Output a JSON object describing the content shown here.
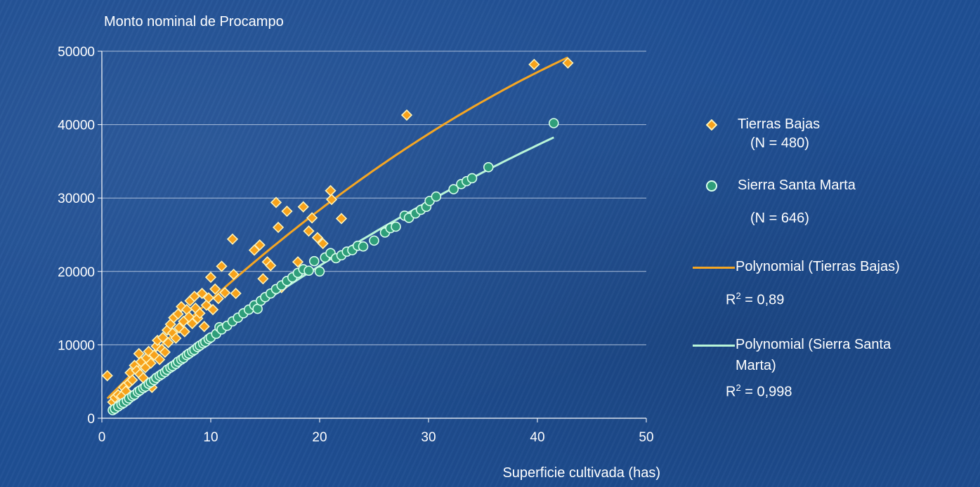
{
  "colors": {
    "background": "#1f4f94",
    "tierras": "#f5a623",
    "tierras_marker_fill": "#f7a21b",
    "tierras_marker_stroke": "#fff2b3",
    "sierra": "#b8f5d8",
    "sierra_marker_fill": "#2f9e7a",
    "sierra_marker_stroke": "#d8ffec",
    "gridline": "#c9d6ea",
    "axis": "#ffffff"
  },
  "chart_data": {
    "type": "scatter",
    "title": "",
    "ylabel": "Monto nominal de Procampo",
    "xlabel": "Superficie cultivada (has)",
    "xlim": [
      0,
      50
    ],
    "ylim": [
      0,
      50000
    ],
    "xticks": [
      0,
      10,
      20,
      30,
      40,
      50
    ],
    "yticks": [
      0,
      10000,
      20000,
      30000,
      40000,
      50000
    ],
    "grid": "horizontal",
    "legend_position": "right",
    "series": [
      {
        "name": "Tierras Bajas",
        "marker": "diamond",
        "note": "(N = 480)",
        "points": [
          [
            0.5,
            5800
          ],
          [
            1.0,
            2200
          ],
          [
            1.2,
            2800
          ],
          [
            1.5,
            3200
          ],
          [
            1.8,
            3000
          ],
          [
            2.0,
            4200
          ],
          [
            2.2,
            3700
          ],
          [
            2.5,
            4800
          ],
          [
            2.6,
            6200
          ],
          [
            2.8,
            5200
          ],
          [
            3.0,
            7200
          ],
          [
            3.2,
            6500
          ],
          [
            3.4,
            8800
          ],
          [
            3.5,
            6000
          ],
          [
            3.6,
            7700
          ],
          [
            3.8,
            5500
          ],
          [
            4.0,
            6900
          ],
          [
            4.1,
            8200
          ],
          [
            4.3,
            9100
          ],
          [
            4.5,
            7500
          ],
          [
            4.6,
            4200
          ],
          [
            4.8,
            8600
          ],
          [
            5.0,
            9800
          ],
          [
            5.1,
            10600
          ],
          [
            5.3,
            8000
          ],
          [
            5.5,
            9400
          ],
          [
            5.6,
            11000
          ],
          [
            5.8,
            9000
          ],
          [
            6.0,
            12000
          ],
          [
            6.1,
            10300
          ],
          [
            6.3,
            12800
          ],
          [
            6.5,
            11600
          ],
          [
            6.6,
            13700
          ],
          [
            6.8,
            10900
          ],
          [
            7.0,
            14200
          ],
          [
            7.1,
            12300
          ],
          [
            7.3,
            15200
          ],
          [
            7.5,
            13200
          ],
          [
            7.6,
            11800
          ],
          [
            7.8,
            14800
          ],
          [
            8.0,
            13800
          ],
          [
            8.1,
            16000
          ],
          [
            8.3,
            12900
          ],
          [
            8.5,
            16600
          ],
          [
            8.6,
            15000
          ],
          [
            8.8,
            13600
          ],
          [
            9.0,
            14300
          ],
          [
            9.2,
            17000
          ],
          [
            9.4,
            12500
          ],
          [
            9.6,
            15400
          ],
          [
            9.8,
            16400
          ],
          [
            10.0,
            19200
          ],
          [
            10.2,
            14800
          ],
          [
            10.4,
            17600
          ],
          [
            10.7,
            16300
          ],
          [
            11.0,
            20700
          ],
          [
            11.3,
            17100
          ],
          [
            12.0,
            24400
          ],
          [
            12.1,
            19600
          ],
          [
            12.3,
            17000
          ],
          [
            14.0,
            22900
          ],
          [
            14.5,
            23600
          ],
          [
            14.8,
            19000
          ],
          [
            15.2,
            21300
          ],
          [
            15.5,
            20800
          ],
          [
            16.0,
            29400
          ],
          [
            16.2,
            26000
          ],
          [
            16.5,
            17800
          ],
          [
            17.0,
            28200
          ],
          [
            18.0,
            21300
          ],
          [
            18.5,
            28800
          ],
          [
            19.0,
            25500
          ],
          [
            19.3,
            27300
          ],
          [
            19.8,
            24600
          ],
          [
            20.3,
            23800
          ],
          [
            21.0,
            31000
          ],
          [
            21.1,
            29800
          ],
          [
            22.0,
            27200
          ],
          [
            28.0,
            41300
          ],
          [
            39.7,
            48200
          ],
          [
            42.8,
            48400
          ]
        ]
      },
      {
        "name": "Sierra Santa Marta",
        "marker": "circle",
        "note": "(N = 646)",
        "points": [
          [
            1.0,
            1100
          ],
          [
            1.2,
            1300
          ],
          [
            1.5,
            1600
          ],
          [
            1.8,
            1900
          ],
          [
            2.0,
            2100
          ],
          [
            2.3,
            2400
          ],
          [
            2.5,
            2700
          ],
          [
            2.8,
            3000
          ],
          [
            3.0,
            3200
          ],
          [
            3.3,
            3600
          ],
          [
            3.5,
            3800
          ],
          [
            3.8,
            4100
          ],
          [
            4.0,
            4300
          ],
          [
            4.3,
            4700
          ],
          [
            4.5,
            4900
          ],
          [
            4.8,
            5200
          ],
          [
            5.0,
            5500
          ],
          [
            5.3,
            5800
          ],
          [
            5.5,
            6000
          ],
          [
            5.8,
            6300
          ],
          [
            6.0,
            6600
          ],
          [
            6.3,
            6900
          ],
          [
            6.5,
            7100
          ],
          [
            6.8,
            7400
          ],
          [
            7.0,
            7700
          ],
          [
            7.3,
            8000
          ],
          [
            7.5,
            8200
          ],
          [
            7.8,
            8600
          ],
          [
            8.0,
            8800
          ],
          [
            8.3,
            9100
          ],
          [
            8.5,
            9300
          ],
          [
            8.8,
            9700
          ],
          [
            9.0,
            9900
          ],
          [
            9.3,
            10200
          ],
          [
            9.5,
            10400
          ],
          [
            9.8,
            10800
          ],
          [
            10.0,
            11000
          ],
          [
            10.5,
            11500
          ],
          [
            10.8,
            12400
          ],
          [
            11.0,
            12100
          ],
          [
            11.5,
            12600
          ],
          [
            12.0,
            13200
          ],
          [
            12.5,
            13700
          ],
          [
            13.0,
            14300
          ],
          [
            13.5,
            14800
          ],
          [
            14.0,
            15400
          ],
          [
            14.3,
            14900
          ],
          [
            14.6,
            16000
          ],
          [
            15.0,
            16500
          ],
          [
            15.5,
            17000
          ],
          [
            16.0,
            17600
          ],
          [
            16.5,
            18100
          ],
          [
            17.0,
            18700
          ],
          [
            17.5,
            19200
          ],
          [
            18.0,
            19800
          ],
          [
            18.5,
            20300
          ],
          [
            19.0,
            20100
          ],
          [
            19.5,
            21400
          ],
          [
            20.0,
            20000
          ],
          [
            20.5,
            21900
          ],
          [
            21.0,
            22500
          ],
          [
            21.5,
            21800
          ],
          [
            22.0,
            22200
          ],
          [
            22.5,
            22700
          ],
          [
            23.0,
            22900
          ],
          [
            23.5,
            23500
          ],
          [
            24.0,
            23400
          ],
          [
            25.0,
            24200
          ],
          [
            26.0,
            25300
          ],
          [
            26.5,
            25900
          ],
          [
            27.0,
            26100
          ],
          [
            27.8,
            27600
          ],
          [
            28.2,
            27300
          ],
          [
            28.8,
            27900
          ],
          [
            29.3,
            28400
          ],
          [
            29.8,
            28800
          ],
          [
            30.1,
            29600
          ],
          [
            30.7,
            30200
          ],
          [
            32.3,
            31200
          ],
          [
            33.0,
            31900
          ],
          [
            33.5,
            32300
          ],
          [
            34.0,
            32700
          ],
          [
            35.5,
            34200
          ],
          [
            41.5,
            40200
          ]
        ]
      }
    ],
    "trendlines": [
      {
        "name": "Polynomial (Tierras Bajas)",
        "r2_label": "R",
        "r2_sup": "2",
        "r2_value": " = 0,89"
      },
      {
        "name": "Polynomial (Sierra Santa Marta)",
        "r2_label": "R",
        "r2_sup": "2",
        "r2_value": " = 0,998"
      }
    ]
  },
  "legend": {
    "tierras_label": "Tierras Bajas",
    "tierras_n": "(N = 480)",
    "sierra_label": "Sierra Santa Marta",
    "sierra_n": "(N = 646)",
    "poly_tierras_label": "Polynomial (Tierras Bajas)",
    "poly_sierra_label_1": "Polynomial (Sierra Santa",
    "poly_sierra_label_2": "Marta)"
  }
}
